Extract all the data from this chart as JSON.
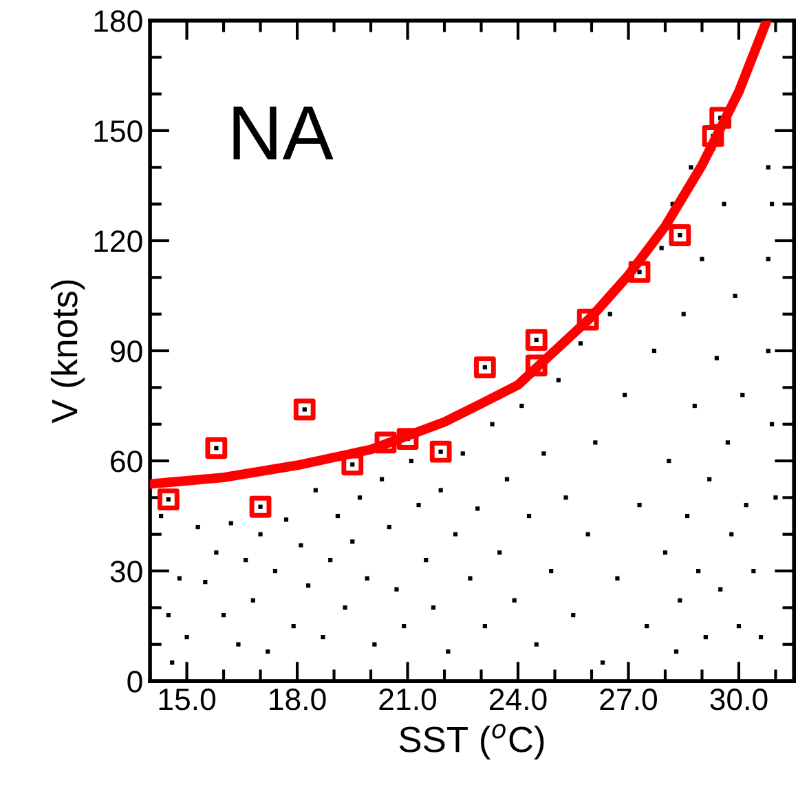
{
  "chart_data": {
    "type": "scatter",
    "xlabel": "SST ($^{o}$C)",
    "ylabel": "V (knots)",
    "annotations": [
      "NA"
    ],
    "xlim": [
      14,
      31.5
    ],
    "ylim": [
      0,
      180
    ],
    "xticks": [
      {
        "value": 15,
        "label": "15.0"
      },
      {
        "value": 18,
        "label": "18.0"
      },
      {
        "value": 21,
        "label": "21.0"
      },
      {
        "value": 24,
        "label": "24.0"
      },
      {
        "value": 27,
        "label": "27.0"
      },
      {
        "value": 30,
        "label": "30.0"
      }
    ],
    "yticks": [
      0,
      30,
      60,
      90,
      120,
      150,
      180
    ],
    "grid": false,
    "series": [
      {
        "marker": "square",
        "color": "#000000",
        "x": [
          14.3,
          14.5,
          14.6,
          14.8,
          15.0,
          15.3,
          15.5,
          15.8,
          16.0,
          16.2,
          16.4,
          16.6,
          16.8,
          17.0,
          17.2,
          17.4,
          17.7,
          17.9,
          18.1,
          18.3,
          18.5,
          18.7,
          18.9,
          19.1,
          19.3,
          19.5,
          19.7,
          19.9,
          20.1,
          20.3,
          20.5,
          20.7,
          20.9,
          21.1,
          21.3,
          21.5,
          21.7,
          21.9,
          22.1,
          22.3,
          22.5,
          22.7,
          22.9,
          23.1,
          23.3,
          23.5,
          23.7,
          23.9,
          24.1,
          24.3,
          24.5,
          24.7,
          24.9,
          25.1,
          25.3,
          25.5,
          25.7,
          25.9,
          26.1,
          26.3,
          26.5,
          26.7,
          26.9,
          27.1,
          27.3,
          27.5,
          27.7,
          27.9,
          28.0,
          28.1,
          28.2,
          28.3,
          28.4,
          28.5,
          28.6,
          28.7,
          28.8,
          28.9,
          29.0,
          29.1,
          29.2,
          29.3,
          29.4,
          29.5,
          29.6,
          29.7,
          29.8,
          29.9,
          30.0,
          30.1,
          30.2,
          30.4,
          30.6,
          30.8,
          30.8,
          30.9,
          30.8,
          30.9,
          31.0,
          14.5,
          15.8,
          17.0,
          18.2,
          19.5,
          21.0,
          21.9,
          23.1,
          24.5,
          27.3,
          28.4,
          29.3,
          29.5
        ],
        "values": [
          45,
          18,
          5,
          28,
          12,
          42,
          27,
          35,
          18,
          43,
          10,
          33,
          22,
          40,
          8,
          30,
          44,
          15,
          37,
          26,
          52,
          12,
          33,
          45,
          20,
          38,
          50,
          28,
          10,
          55,
          42,
          25,
          15,
          60,
          48,
          33,
          20,
          52,
          8,
          40,
          62,
          28,
          47,
          15,
          70,
          35,
          55,
          22,
          75,
          45,
          10,
          62,
          30,
          82,
          50,
          18,
          92,
          40,
          65,
          5,
          100,
          28,
          78,
          110,
          48,
          15,
          90,
          118,
          35,
          60,
          130,
          8,
          22,
          100,
          45,
          140,
          75,
          30,
          115,
          12,
          55,
          145,
          88,
          25,
          130,
          65,
          40,
          105,
          15,
          78,
          48,
          30,
          12,
          140,
          115,
          130,
          90,
          70,
          50,
          49.5,
          63.5,
          47.5,
          74,
          59,
          66,
          62.5,
          85.5,
          93,
          111.5,
          121.5,
          148.5,
          153.5
        ]
      },
      {
        "marker": "square",
        "color": "#ff0000",
        "x": [
          14.5,
          15.8,
          17.0,
          18.2,
          19.5,
          20.4,
          21.0,
          21.9,
          23.1,
          24.5,
          24.5,
          25.9,
          27.3,
          28.4,
          29.3,
          29.5
        ],
        "values": [
          49.5,
          63.5,
          47.5,
          74,
          59,
          65,
          66,
          62.5,
          85.5,
          86,
          93,
          98.5,
          111.5,
          121.5,
          148.5,
          153.5
        ]
      },
      {
        "type": "line",
        "color": "#ff0000",
        "x": [
          14,
          16,
          18,
          20,
          22,
          23,
          24,
          25,
          26,
          27,
          28,
          29,
          30,
          30.76
        ],
        "values": [
          53.7,
          55.5,
          58.8,
          63.1,
          70.6,
          75.6,
          80.7,
          90,
          99.3,
          110.6,
          123.9,
          140.6,
          160.6,
          180
        ]
      }
    ]
  }
}
